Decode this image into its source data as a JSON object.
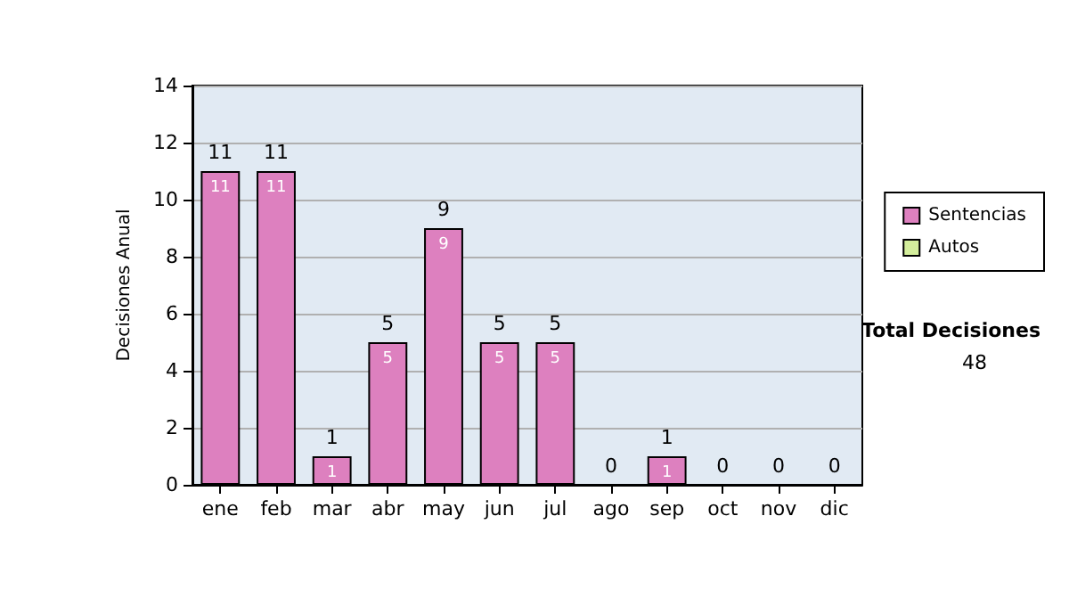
{
  "chart_data": {
    "type": "bar",
    "stacked": true,
    "ylabel": "Decisiones Anual",
    "categories": [
      "ene",
      "feb",
      "mar",
      "abr",
      "may",
      "jun",
      "jul",
      "ago",
      "sep",
      "oct",
      "nov",
      "dic"
    ],
    "series": [
      {
        "name": "Sentencias",
        "color": "#dd80bf",
        "values": [
          11,
          11,
          1,
          5,
          9,
          5,
          5,
          0,
          1,
          0,
          0,
          0
        ],
        "value_labels": [
          "11",
          "11",
          "1",
          "5",
          "9",
          "5",
          "5",
          null,
          "1",
          null,
          null,
          null
        ]
      },
      {
        "name": "Autos",
        "color": "#d4ee9c",
        "values": [
          0,
          0,
          0,
          0,
          0,
          0,
          0,
          0,
          0,
          0,
          0,
          0
        ]
      }
    ],
    "totals": [
      "11",
      "11",
      "1",
      "5",
      "9",
      "5",
      "5",
      "0",
      "1",
      "0",
      "0",
      "0"
    ],
    "ylim": [
      0,
      14
    ],
    "yticks": [
      0,
      2,
      4,
      6,
      8,
      10,
      12,
      14
    ],
    "grid": "y",
    "legend": "right",
    "annotations": [
      "Total Decisiones",
      "48"
    ]
  }
}
